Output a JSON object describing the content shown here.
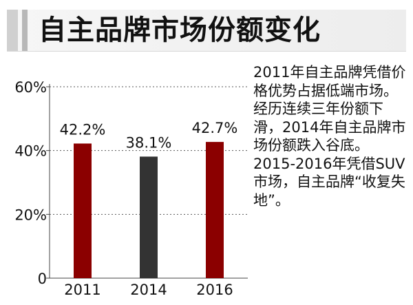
{
  "header": {
    "title": "自主品牌市场份额变化"
  },
  "chart_data": {
    "type": "bar",
    "title": "自主品牌市场份额变化",
    "categories": [
      "2011",
      "2014",
      "2016"
    ],
    "values": [
      42.2,
      38.1,
      42.7
    ],
    "value_labels": [
      "42.2%",
      "38.1%",
      "42.7%"
    ],
    "bar_colors": [
      "#8b0000",
      "#333333",
      "#8b0000"
    ],
    "ylim": [
      0,
      60
    ],
    "y_ticks": [
      0,
      20,
      40,
      60
    ],
    "y_tick_labels": [
      "0",
      "20%",
      "40%",
      "60%"
    ],
    "gridlines": "dotted",
    "xlabel": "",
    "ylabel": ""
  },
  "notes": [
    "2011年自主品牌凭借价格优势占据低端市场。",
    "经历连续三年份额下滑，2014年自主品牌市场份额跌入谷底。",
    "2015-2016年凭借SUV市场，自主品牌“收复失地”。"
  ]
}
